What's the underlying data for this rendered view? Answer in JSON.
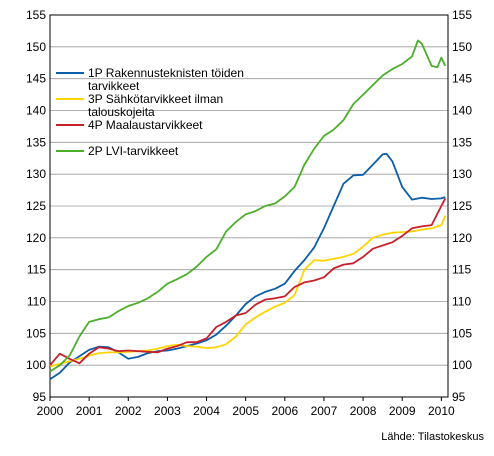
{
  "chart_data": {
    "type": "line",
    "source": "Lähde: Tilastokeskus",
    "x_ticks": [
      "2000",
      "2001",
      "2002",
      "2003",
      "2004",
      "2005",
      "2006",
      "2007",
      "2008",
      "2009",
      "2010"
    ],
    "y_ticks": [
      "95",
      "100",
      "105",
      "110",
      "115",
      "120",
      "125",
      "130",
      "135",
      "140",
      "145",
      "150",
      "155"
    ],
    "xlim": [
      2000,
      2010.17
    ],
    "ylim": [
      95,
      155
    ],
    "grid": true,
    "legend_position": "top-left",
    "series": [
      {
        "name": "1P Rakennusteknisten töiden tarvikkeet",
        "legend_lines": [
          "1P Rakennusteknisten töiden",
          "tarvikkeet"
        ],
        "color": "#0b5ea8",
        "points": [
          [
            2000.0,
            97.8
          ],
          [
            2000.25,
            98.8
          ],
          [
            2000.5,
            100.4
          ],
          [
            2000.75,
            101.4
          ],
          [
            2001.0,
            102.4
          ],
          [
            2001.25,
            102.9
          ],
          [
            2001.5,
            102.8
          ],
          [
            2001.75,
            102.0
          ],
          [
            2002.0,
            101.0
          ],
          [
            2002.25,
            101.3
          ],
          [
            2002.5,
            101.9
          ],
          [
            2002.75,
            102.2
          ],
          [
            2003.0,
            102.3
          ],
          [
            2003.25,
            102.6
          ],
          [
            2003.5,
            103.0
          ],
          [
            2003.75,
            103.4
          ],
          [
            2004.0,
            103.9
          ],
          [
            2004.25,
            104.8
          ],
          [
            2004.5,
            106.2
          ],
          [
            2004.75,
            107.8
          ],
          [
            2005.0,
            109.6
          ],
          [
            2005.25,
            110.8
          ],
          [
            2005.5,
            111.5
          ],
          [
            2005.75,
            112.0
          ],
          [
            2006.0,
            112.8
          ],
          [
            2006.25,
            114.8
          ],
          [
            2006.5,
            116.5
          ],
          [
            2006.75,
            118.5
          ],
          [
            2007.0,
            121.5
          ],
          [
            2007.25,
            125.0
          ],
          [
            2007.5,
            128.5
          ],
          [
            2007.75,
            129.8
          ],
          [
            2008.0,
            129.9
          ],
          [
            2008.25,
            131.5
          ],
          [
            2008.5,
            133.1
          ],
          [
            2008.6,
            133.2
          ],
          [
            2008.75,
            132.0
          ],
          [
            2009.0,
            128.0
          ],
          [
            2009.25,
            126.0
          ],
          [
            2009.5,
            126.3
          ],
          [
            2009.75,
            126.1
          ],
          [
            2010.0,
            126.2
          ],
          [
            2010.1,
            126.4
          ]
        ]
      },
      {
        "name": "3P Sähkötarvikkeet ilman talouskojeita",
        "legend_lines": [
          "3P Sähkötarvikkeet ilman",
          "talouskojeita"
        ],
        "color": "#ffd400",
        "points": [
          [
            2000.0,
            99.8
          ],
          [
            2000.25,
            100.2
          ],
          [
            2000.5,
            100.6
          ],
          [
            2000.75,
            101.0
          ],
          [
            2001.0,
            101.5
          ],
          [
            2001.25,
            101.9
          ],
          [
            2001.5,
            102.0
          ],
          [
            2001.75,
            102.0
          ],
          [
            2002.0,
            102.1
          ],
          [
            2002.25,
            102.2
          ],
          [
            2002.5,
            102.3
          ],
          [
            2002.75,
            102.6
          ],
          [
            2003.0,
            103.0
          ],
          [
            2003.25,
            103.2
          ],
          [
            2003.5,
            103.0
          ],
          [
            2003.75,
            102.9
          ],
          [
            2004.0,
            102.7
          ],
          [
            2004.25,
            102.8
          ],
          [
            2004.5,
            103.3
          ],
          [
            2004.75,
            104.5
          ],
          [
            2005.0,
            106.4
          ],
          [
            2005.25,
            107.5
          ],
          [
            2005.5,
            108.4
          ],
          [
            2005.75,
            109.2
          ],
          [
            2006.0,
            109.8
          ],
          [
            2006.25,
            111.0
          ],
          [
            2006.5,
            115.0
          ],
          [
            2006.75,
            116.5
          ],
          [
            2007.0,
            116.4
          ],
          [
            2007.25,
            116.7
          ],
          [
            2007.5,
            117.0
          ],
          [
            2007.75,
            117.5
          ],
          [
            2008.0,
            118.6
          ],
          [
            2008.25,
            120.0
          ],
          [
            2008.5,
            120.5
          ],
          [
            2008.75,
            120.8
          ],
          [
            2009.0,
            120.9
          ],
          [
            2009.25,
            121.0
          ],
          [
            2009.5,
            121.3
          ],
          [
            2009.75,
            121.5
          ],
          [
            2010.0,
            122.0
          ],
          [
            2010.1,
            123.5
          ]
        ]
      },
      {
        "name": "4P Maalaustarvikkeet",
        "legend_lines": [
          "4P Maalaustarvikkeet"
        ],
        "color": "#c8202a",
        "points": [
          [
            2000.0,
            100.0
          ],
          [
            2000.25,
            101.8
          ],
          [
            2000.5,
            101.0
          ],
          [
            2000.75,
            100.3
          ],
          [
            2001.0,
            101.8
          ],
          [
            2001.25,
            102.8
          ],
          [
            2001.5,
            102.6
          ],
          [
            2001.75,
            102.2
          ],
          [
            2002.0,
            102.3
          ],
          [
            2002.25,
            102.2
          ],
          [
            2002.5,
            102.1
          ],
          [
            2002.75,
            102.0
          ],
          [
            2003.0,
            102.6
          ],
          [
            2003.25,
            103.0
          ],
          [
            2003.5,
            103.6
          ],
          [
            2003.75,
            103.6
          ],
          [
            2004.0,
            104.2
          ],
          [
            2004.25,
            106.0
          ],
          [
            2004.5,
            106.8
          ],
          [
            2004.75,
            107.8
          ],
          [
            2005.0,
            108.2
          ],
          [
            2005.25,
            109.5
          ],
          [
            2005.5,
            110.3
          ],
          [
            2005.75,
            110.5
          ],
          [
            2006.0,
            110.8
          ],
          [
            2006.25,
            112.3
          ],
          [
            2006.5,
            113.0
          ],
          [
            2006.75,
            113.3
          ],
          [
            2007.0,
            113.8
          ],
          [
            2007.25,
            115.2
          ],
          [
            2007.5,
            115.8
          ],
          [
            2007.75,
            116.0
          ],
          [
            2008.0,
            117.0
          ],
          [
            2008.25,
            118.3
          ],
          [
            2008.5,
            118.8
          ],
          [
            2008.75,
            119.3
          ],
          [
            2009.0,
            120.3
          ],
          [
            2009.25,
            121.5
          ],
          [
            2009.5,
            121.8
          ],
          [
            2009.75,
            122.0
          ],
          [
            2010.0,
            125.0
          ],
          [
            2010.1,
            126.2
          ]
        ]
      },
      {
        "name": "2P LVI-tarvikkeet",
        "legend_lines": [
          "2P LVI-tarvikkeet"
        ],
        "color": "#4caf2b",
        "points": [
          [
            2000.0,
            99.0
          ],
          [
            2000.25,
            100.0
          ],
          [
            2000.5,
            101.5
          ],
          [
            2000.75,
            104.5
          ],
          [
            2001.0,
            106.8
          ],
          [
            2001.25,
            107.2
          ],
          [
            2001.5,
            107.5
          ],
          [
            2001.75,
            108.5
          ],
          [
            2002.0,
            109.3
          ],
          [
            2002.25,
            109.8
          ],
          [
            2002.5,
            110.5
          ],
          [
            2002.75,
            111.5
          ],
          [
            2003.0,
            112.8
          ],
          [
            2003.25,
            113.5
          ],
          [
            2003.5,
            114.3
          ],
          [
            2003.75,
            115.5
          ],
          [
            2004.0,
            117.0
          ],
          [
            2004.25,
            118.2
          ],
          [
            2004.5,
            121.0
          ],
          [
            2004.75,
            122.5
          ],
          [
            2005.0,
            123.7
          ],
          [
            2005.25,
            124.2
          ],
          [
            2005.5,
            125.0
          ],
          [
            2005.75,
            125.4
          ],
          [
            2006.0,
            126.5
          ],
          [
            2006.25,
            128.0
          ],
          [
            2006.5,
            131.5
          ],
          [
            2006.75,
            134.0
          ],
          [
            2007.0,
            136.0
          ],
          [
            2007.25,
            137.0
          ],
          [
            2007.5,
            138.5
          ],
          [
            2007.75,
            141.0
          ],
          [
            2008.0,
            142.5
          ],
          [
            2008.25,
            144.0
          ],
          [
            2008.5,
            145.5
          ],
          [
            2008.75,
            146.5
          ],
          [
            2009.0,
            147.3
          ],
          [
            2009.25,
            148.5
          ],
          [
            2009.4,
            151.0
          ],
          [
            2009.5,
            150.5
          ],
          [
            2009.75,
            147.0
          ],
          [
            2009.9,
            146.8
          ],
          [
            2010.0,
            148.3
          ],
          [
            2010.1,
            147.0
          ]
        ]
      }
    ]
  }
}
